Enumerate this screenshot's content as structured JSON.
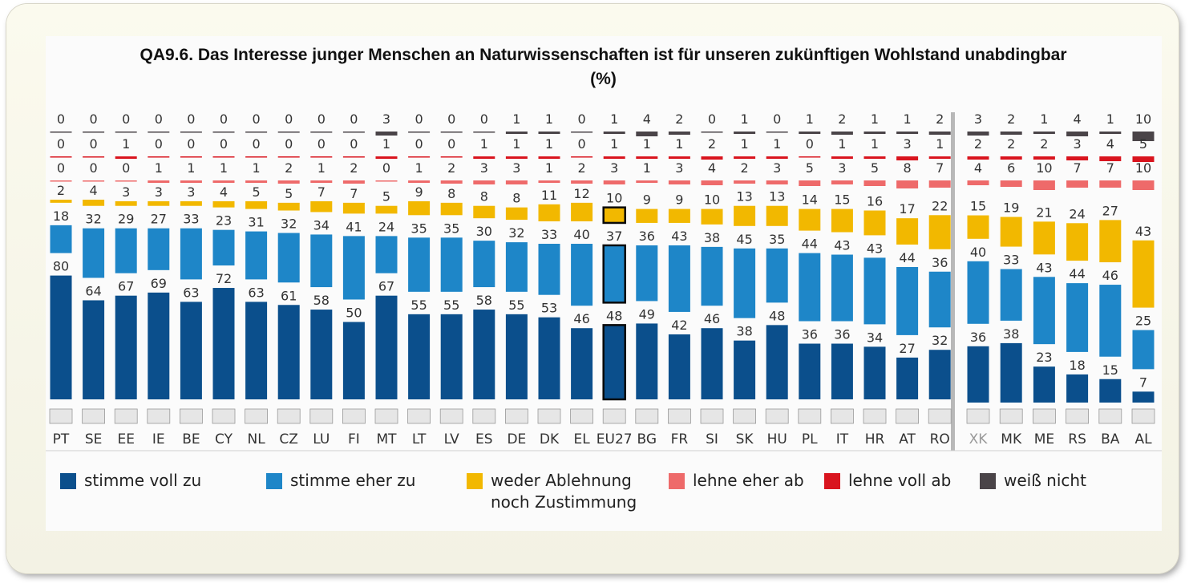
{
  "title": "QA9.6. Das Interesse junger Menschen an Naturwissenschaften ist für unseren zukünftigen Wohlstand unabdingbar",
  "subtitle": "(%)",
  "colors": {
    "stimme_voll_zu": "#0b4f8c",
    "stimme_eher_zu": "#1e86c8",
    "weder": "#f2b800",
    "lehne_eher_ab": "#ee6a6a",
    "lehne_voll_ab": "#d9141e",
    "weiss_nicht": "#4a4448"
  },
  "legend": [
    {
      "label": "stimme voll zu",
      "color": "#0b4f8c"
    },
    {
      "label": "stimme eher zu",
      "color": "#1e86c8"
    },
    {
      "label": "weder Ablehnung",
      "label2": "noch Zustimmung",
      "color": "#f2b800"
    },
    {
      "label": "lehne eher ab",
      "color": "#ee6a6a"
    },
    {
      "label": "lehne voll ab",
      "color": "#d9141e"
    },
    {
      "label": "weiß nicht",
      "color": "#4a4448"
    }
  ],
  "chart_data": {
    "type": "bar",
    "stacked": true,
    "title": "QA9.6. Das Interesse junger Menschen an Naturwissenschaften ist für unseren zukünftigen Wohlstand unabdingbar",
    "subtitle": "(%)",
    "categories": [
      "PT",
      "SE",
      "EE",
      "IE",
      "BE",
      "CY",
      "NL",
      "CZ",
      "LU",
      "FI",
      "MT",
      "LT",
      "LV",
      "ES",
      "DE",
      "DK",
      "EL",
      "EU27",
      "BG",
      "FR",
      "SI",
      "SK",
      "HU",
      "PL",
      "IT",
      "HR",
      "AT",
      "RO",
      "XK",
      "MK",
      "ME",
      "RS",
      "BA",
      "AL"
    ],
    "highlight": "EU27",
    "series": [
      {
        "name": "stimme voll zu",
        "values": [
          80,
          64,
          67,
          69,
          63,
          72,
          63,
          61,
          58,
          50,
          67,
          55,
          55,
          58,
          55,
          53,
          46,
          48,
          49,
          42,
          46,
          38,
          48,
          36,
          36,
          34,
          27,
          32,
          36,
          38,
          23,
          18,
          15,
          7
        ]
      },
      {
        "name": "stimme eher zu",
        "values": [
          18,
          32,
          29,
          27,
          33,
          23,
          31,
          32,
          34,
          41,
          24,
          35,
          35,
          30,
          32,
          33,
          40,
          37,
          36,
          43,
          38,
          45,
          35,
          44,
          43,
          43,
          44,
          36,
          40,
          33,
          43,
          44,
          46,
          25
        ]
      },
      {
        "name": "weder Ablehnung noch Zustimmung",
        "values": [
          2,
          4,
          3,
          3,
          3,
          4,
          5,
          5,
          7,
          7,
          5,
          9,
          8,
          8,
          8,
          11,
          12,
          10,
          9,
          9,
          10,
          13,
          13,
          14,
          15,
          16,
          17,
          22,
          15,
          19,
          21,
          24,
          27,
          43
        ]
      },
      {
        "name": "lehne eher ab",
        "values": [
          0,
          0,
          0,
          1,
          1,
          1,
          1,
          2,
          1,
          2,
          0,
          1,
          2,
          3,
          3,
          1,
          2,
          3,
          1,
          3,
          4,
          2,
          3,
          5,
          3,
          5,
          8,
          7,
          4,
          6,
          10,
          7,
          7,
          10
        ]
      },
      {
        "name": "lehne voll ab",
        "values": [
          0,
          0,
          1,
          0,
          0,
          0,
          0,
          0,
          0,
          0,
          1,
          0,
          0,
          1,
          1,
          1,
          0,
          1,
          1,
          1,
          2,
          1,
          1,
          0,
          1,
          1,
          3,
          1,
          2,
          2,
          2,
          3,
          4,
          5
        ]
      },
      {
        "name": "weiß nicht",
        "values": [
          0,
          0,
          0,
          0,
          0,
          0,
          0,
          0,
          0,
          0,
          3,
          0,
          0,
          0,
          1,
          1,
          0,
          1,
          4,
          2,
          0,
          1,
          0,
          1,
          2,
          1,
          1,
          2,
          3,
          2,
          1,
          4,
          1,
          10
        ]
      }
    ]
  }
}
